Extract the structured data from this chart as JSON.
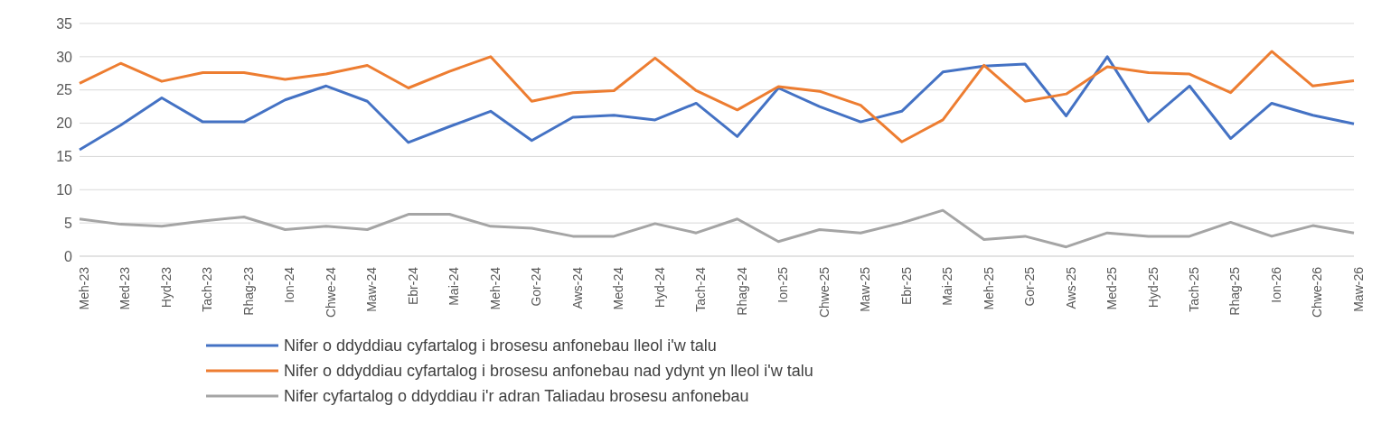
{
  "chart_data": {
    "type": "line",
    "categories": [
      "Meh-23",
      "Med-23",
      "Hyd-23",
      "Tach-23",
      "Rhag-23",
      "Ion-24",
      "Chwe-24",
      "Maw-24",
      "Ebr-24",
      "Mai-24",
      "Meh-24",
      "Gor-24",
      "Aws-24",
      "Med-24",
      "Hyd-24",
      "Tach-24",
      "Rhag-24",
      "Ion-25",
      "Chwe-25",
      "Maw-25",
      "Ebr-25",
      "Mai-25",
      "Meh-25",
      "Gor-25",
      "Aws-25",
      "Med-25",
      "Hyd-25",
      "Tach-25",
      "Rhag-25",
      "Ion-26",
      "Chwe-26",
      "Maw-26"
    ],
    "series": [
      {
        "name": "Nifer o ddyddiau cyfartalog i brosesu anfonebau lleol i'w talu",
        "color": "#4472c4",
        "values": [
          16,
          19.7,
          23.8,
          20.2,
          20.2,
          23.5,
          25.6,
          23.3,
          17.1,
          19.5,
          21.8,
          17.4,
          20.9,
          21.2,
          20.5,
          23,
          18,
          25.3,
          22.5,
          20.2,
          21.8,
          27.7,
          28.6,
          28.9,
          21.1,
          30,
          20.3,
          25.6,
          17.7,
          23,
          21.2,
          19.9
        ]
      },
      {
        "name": "Nifer o ddyddiau cyfartalog i brosesu anfonebau nad ydynt yn lleol i'w talu",
        "color": "#ed7d31",
        "values": [
          26,
          29,
          26.3,
          27.6,
          27.6,
          26.6,
          27.4,
          28.7,
          25.3,
          27.8,
          30,
          23.3,
          24.6,
          24.9,
          29.8,
          24.9,
          22,
          25.5,
          24.8,
          22.7,
          17.2,
          20.5,
          28.7,
          23.3,
          24.4,
          28.5,
          27.6,
          27.4,
          24.6,
          30.8,
          25.6,
          26.4
        ]
      },
      {
        "name": "Nifer cyfartalog o ddyddiau i'r adran Taliadau brosesu anfonebau",
        "color": "#a5a5a5",
        "values": [
          5.6,
          4.8,
          4.5,
          5.3,
          5.9,
          4,
          4.5,
          4,
          6.3,
          6.3,
          4.5,
          4.2,
          3,
          3,
          4.9,
          3.5,
          5.6,
          2.2,
          4,
          3.5,
          5,
          6.9,
          2.5,
          3,
          1.4,
          3.5,
          3,
          3,
          5.1,
          3,
          4.6,
          3.5
        ]
      }
    ],
    "ylim": [
      0,
      35
    ],
    "yticks": [
      0,
      5,
      10,
      15,
      20,
      25,
      30,
      35
    ],
    "grid": "y",
    "legend": "bottom",
    "marker": "none",
    "line_style": "solid"
  }
}
